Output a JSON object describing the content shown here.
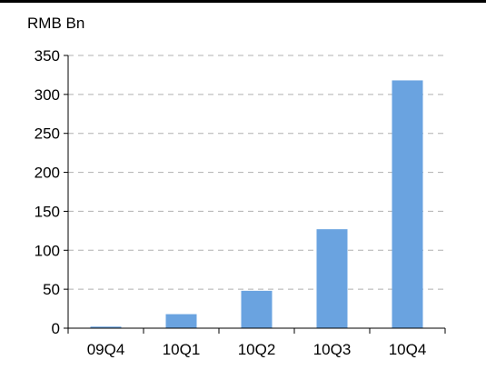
{
  "chart_data": {
    "type": "bar",
    "title": "",
    "ylabel": "RMB Bn",
    "xlabel": "",
    "categories": [
      "09Q4",
      "10Q1",
      "10Q2",
      "10Q3",
      "10Q4"
    ],
    "values": [
      2,
      18,
      48,
      127,
      318
    ],
    "ylim": [
      0,
      350
    ],
    "yticks": [
      0,
      50,
      100,
      150,
      200,
      250,
      300,
      350
    ],
    "grid": "horizontal-dashed",
    "legend": "none",
    "bar_color": "#6aa3e0"
  }
}
